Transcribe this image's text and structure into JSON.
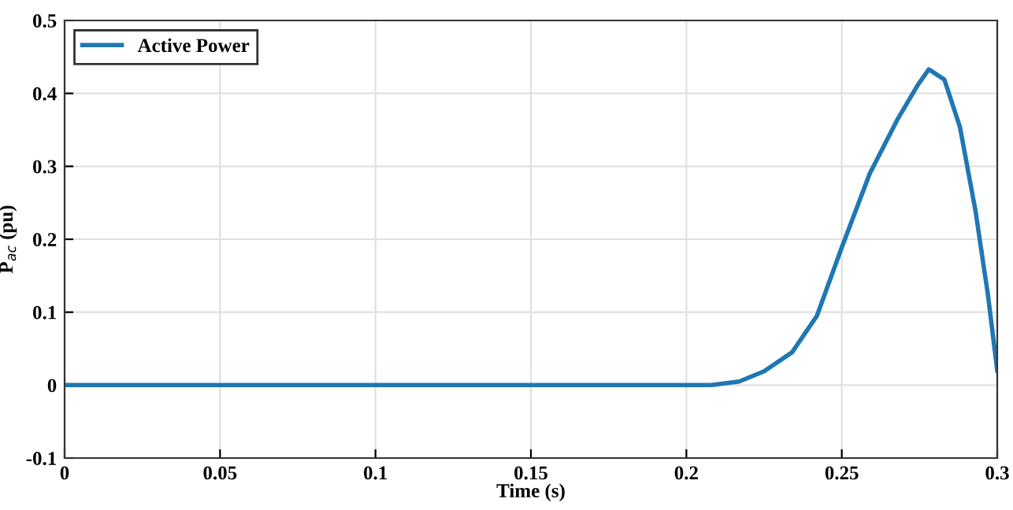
{
  "chart_data": {
    "type": "line",
    "xlabel": "Time (s)",
    "ylabel": "P$_{ac}$ (pu)",
    "series": [
      {
        "name": "Active Power",
        "color": "#1f77b4",
        "x": [
          0,
          0.05,
          0.1,
          0.15,
          0.2,
          0.208,
          0.217,
          0.225,
          0.234,
          0.242,
          0.25,
          0.259,
          0.268,
          0.2745,
          0.278,
          0.283,
          0.288,
          0.293,
          0.297,
          0.3
        ],
        "values": [
          0,
          0,
          0,
          0,
          0,
          0,
          0.005,
          0.019,
          0.045,
          0.095,
          0.189,
          0.29,
          0.365,
          0.412,
          0.433,
          0.419,
          0.354,
          0.239,
          0.124,
          0.02
        ]
      }
    ],
    "xlim": [
      0,
      0.3
    ],
    "xticks": [
      0,
      0.05,
      0.1,
      0.15,
      0.2,
      0.25,
      0.3
    ],
    "ylim": [
      -0.1,
      0.5
    ],
    "yticks": [
      -0.1,
      0,
      0.1,
      0.2,
      0.3,
      0.4,
      0.5
    ],
    "grid": true,
    "legend": "top left"
  }
}
